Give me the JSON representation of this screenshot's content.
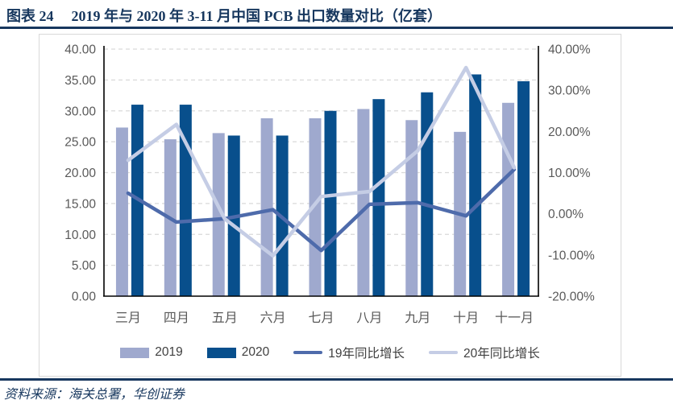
{
  "header": {
    "figure_label": "图表 24",
    "title": "2019 年与 2020 年 3-11 月中国 PCB 出口数量对比（亿套）"
  },
  "footer": {
    "source": "资料来源：海关总署，华创证券"
  },
  "colors": {
    "navy": "#17375E",
    "grid": "#D9D9D9",
    "axis_line": "#000000",
    "axis_text": "#595959",
    "legend_text": "#404040",
    "bar_2019": "#9FA9CE",
    "bar_2020": "#084F8C",
    "line_19yoy": "#4E6BAB",
    "line_20yoy": "#C5CDE5"
  },
  "chart_data": {
    "type": "combo-bar-line",
    "title": "2019 年与 2020 年 3-11 月中国 PCB 出口数量对比（亿套）",
    "categories": [
      "三月",
      "四月",
      "五月",
      "六月",
      "七月",
      "八月",
      "九月",
      "十月",
      "十一月"
    ],
    "bar_series": [
      {
        "name": "2019",
        "axis": "left",
        "color": "#9FA9CE",
        "values": [
          27.3,
          25.4,
          26.4,
          28.8,
          28.8,
          30.3,
          28.5,
          26.6,
          31.3
        ]
      },
      {
        "name": "2020",
        "axis": "left",
        "color": "#084F8C",
        "values": [
          31.0,
          31.0,
          26.0,
          26.0,
          30.0,
          31.9,
          33.0,
          35.9,
          34.8
        ]
      }
    ],
    "line_series": [
      {
        "name": "19年同比增长",
        "axis": "right",
        "unit": "%",
        "color": "#4E6BAB",
        "values": [
          5.0,
          -2.0,
          -1.2,
          1.0,
          -8.9,
          2.3,
          2.7,
          -0.5,
          10.8
        ]
      },
      {
        "name": "20年同比增长",
        "axis": "right",
        "unit": "%",
        "color": "#C5CDE5",
        "values": [
          13.0,
          21.7,
          -1.2,
          -10.2,
          4.2,
          5.4,
          15.3,
          35.5,
          11.2
        ]
      }
    ],
    "left_axis": {
      "min": 0,
      "max": 40,
      "tick_values": [
        40,
        35,
        30,
        25,
        20,
        15,
        10,
        5,
        0
      ],
      "tick_labels": [
        "40.00",
        "35.00",
        "30.00",
        "25.00",
        "20.00",
        "15.00",
        "10.00",
        "5.00",
        "0.00"
      ]
    },
    "right_axis": {
      "min": -20,
      "max": 40,
      "tick_values": [
        40,
        30,
        20,
        10,
        0,
        -10,
        -20
      ],
      "tick_labels": [
        "40.00%",
        "30.00%",
        "20.00%",
        "10.00%",
        "0.00%",
        "-10.00%",
        "-20.00%"
      ]
    },
    "grid": "horizontal-dashed",
    "legend_position": "bottom",
    "legend": [
      "2019",
      "2020",
      "19年同比增长",
      "20年同比增长"
    ]
  }
}
